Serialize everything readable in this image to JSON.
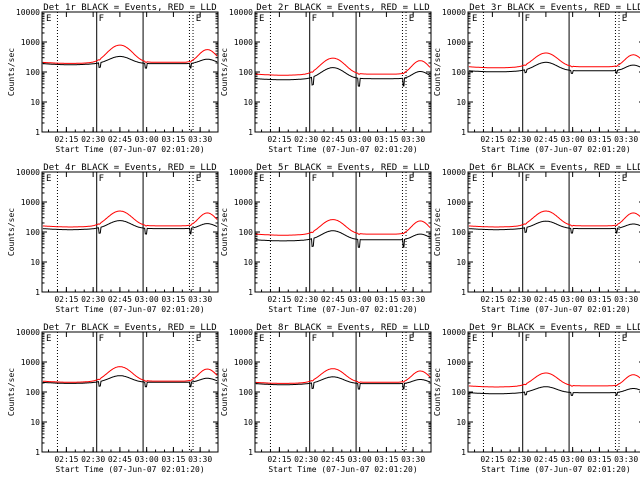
{
  "page": {
    "title": ""
  },
  "colors": {
    "events": "#000000",
    "lld": "#ff0000",
    "axes": "#000000",
    "background": "#ffffff"
  },
  "common": {
    "xlabel": "Start Time (07-Jun-07 02:01:20)",
    "ylabel": "Counts/sec",
    "x_ticks": [
      "02:15",
      "02:30",
      "02:45",
      "03:00",
      "03:15",
      "03:30"
    ],
    "y_ticks": [
      "1",
      "10",
      "100",
      "1000",
      "10000"
    ],
    "y_scale": "log",
    "ylim": [
      1,
      10000
    ],
    "xlim": [
      "02:01:20",
      "03:40:00"
    ],
    "vlines_solid": [
      "02:32",
      "02:58"
    ],
    "vlines_dotted": [
      "02:10",
      "03:24",
      "03:26"
    ],
    "flag_labels": [
      "E",
      "F",
      "E"
    ]
  },
  "chart_data": [
    {
      "type": "line",
      "title": "Det 1r BLACK = Events, RED = LLD",
      "series": [
        {
          "name": "Events",
          "color": "#000000",
          "base": 190,
          "peak": 330,
          "drop": 0.7,
          "peak2": 0.55
        },
        {
          "name": "LLD",
          "color": "#ff0000",
          "base": 210,
          "peak": 790,
          "drop": 0.95,
          "peak2": 0.6
        }
      ]
    },
    {
      "type": "line",
      "title": "Det 2r BLACK = Events, RED = LLD",
      "series": [
        {
          "name": "Events",
          "color": "#000000",
          "base": 60,
          "peak": 140,
          "drop": 0.55,
          "peak2": 0.55
        },
        {
          "name": "LLD",
          "color": "#ff0000",
          "base": 85,
          "peak": 290,
          "drop": 0.95,
          "peak2": 0.75
        }
      ]
    },
    {
      "type": "line",
      "title": "Det 3r BLACK = Events, RED = LLD",
      "series": [
        {
          "name": "Events",
          "color": "#000000",
          "base": 110,
          "peak": 210,
          "drop": 0.8,
          "peak2": 0.6
        },
        {
          "name": "LLD",
          "color": "#ff0000",
          "base": 150,
          "peak": 430,
          "drop": 0.95,
          "peak2": 0.8
        }
      ]
    },
    {
      "type": "line",
      "title": "Det 4r BLACK = Events, RED = LLD",
      "series": [
        {
          "name": "Events",
          "color": "#000000",
          "base": 130,
          "peak": 240,
          "drop": 0.65,
          "peak2": 0.55
        },
        {
          "name": "LLD",
          "color": "#ff0000",
          "base": 160,
          "peak": 500,
          "drop": 0.95,
          "peak2": 0.8
        }
      ]
    },
    {
      "type": "line",
      "title": "Det 5r BLACK = Events, RED = LLD",
      "series": [
        {
          "name": "Events",
          "color": "#000000",
          "base": 55,
          "peak": 110,
          "drop": 0.55,
          "peak2": 0.55
        },
        {
          "name": "LLD",
          "color": "#ff0000",
          "base": 85,
          "peak": 260,
          "drop": 0.95,
          "peak2": 0.85
        }
      ]
    },
    {
      "type": "line",
      "title": "Det 6r BLACK = Events, RED = LLD",
      "series": [
        {
          "name": "Events",
          "color": "#000000",
          "base": 130,
          "peak": 230,
          "drop": 0.7,
          "peak2": 0.55
        },
        {
          "name": "LLD",
          "color": "#ff0000",
          "base": 160,
          "peak": 500,
          "drop": 0.95,
          "peak2": 0.8
        }
      ]
    },
    {
      "type": "line",
      "title": "Det 7r BLACK = Events, RED = LLD",
      "series": [
        {
          "name": "Events",
          "color": "#000000",
          "base": 210,
          "peak": 350,
          "drop": 0.7,
          "peak2": 0.55
        },
        {
          "name": "LLD",
          "color": "#ff0000",
          "base": 230,
          "peak": 700,
          "drop": 0.95,
          "peak2": 0.75
        }
      ]
    },
    {
      "type": "line",
      "title": "Det 8r BLACK = Events, RED = LLD",
      "series": [
        {
          "name": "Events",
          "color": "#000000",
          "base": 190,
          "peak": 320,
          "drop": 0.65,
          "peak2": 0.55
        },
        {
          "name": "LLD",
          "color": "#ff0000",
          "base": 210,
          "peak": 600,
          "drop": 0.95,
          "peak2": 0.75
        }
      ]
    },
    {
      "type": "line",
      "title": "Det 9r BLACK = Events, RED = LLD",
      "series": [
        {
          "name": "Events",
          "color": "#000000",
          "base": 95,
          "peak": 150,
          "drop": 0.8,
          "peak2": 0.65
        },
        {
          "name": "LLD",
          "color": "#ff0000",
          "base": 160,
          "peak": 430,
          "drop": 0.95,
          "peak2": 0.8
        }
      ]
    }
  ]
}
